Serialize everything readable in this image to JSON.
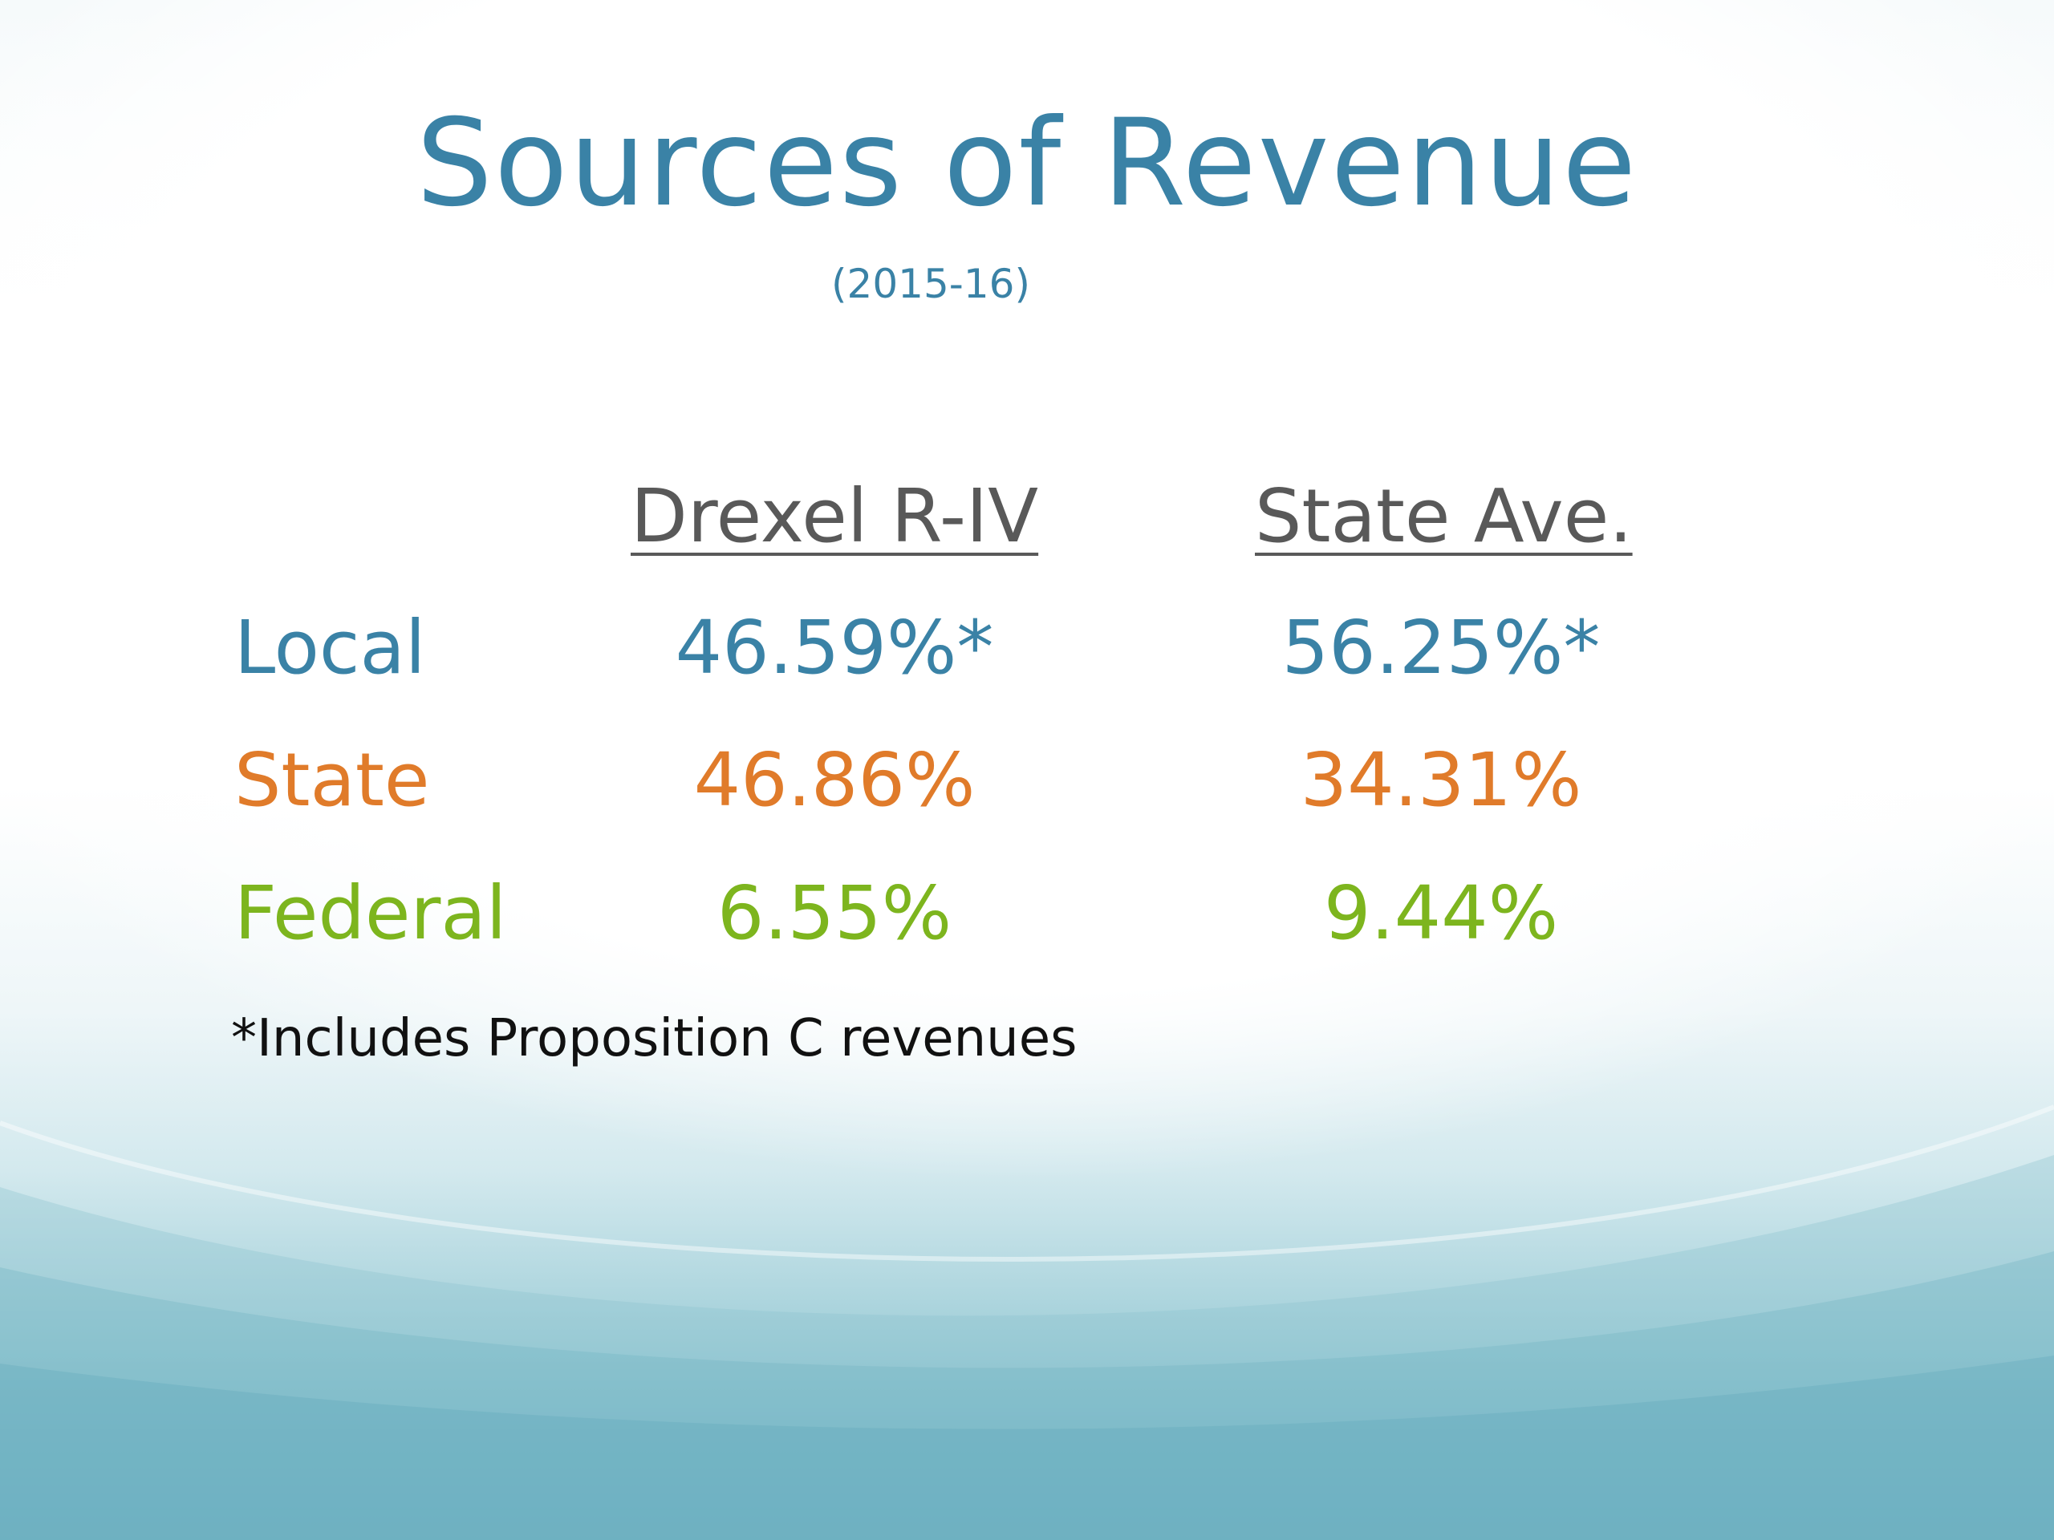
{
  "slide": {
    "title": "Sources of Revenue",
    "subtitle": "(2015-16)",
    "columns": [
      "Drexel R-IV",
      "State Ave."
    ],
    "rows": [
      {
        "label": "Local",
        "values": [
          "46.59%*",
          "56.25%*"
        ],
        "color": "#3a82a6"
      },
      {
        "label": "State",
        "values": [
          "46.86%",
          "34.31%"
        ],
        "color": "#e07b2a"
      },
      {
        "label": "Federal",
        "values": [
          "6.55%",
          "9.44%"
        ],
        "color": "#7db51e"
      }
    ],
    "footnote": "*Includes Proposition C revenues"
  },
  "colors": {
    "title": "#3a82a6",
    "header": "#595959",
    "footnote": "#111111",
    "background_bottom": "#6fb2c3"
  }
}
